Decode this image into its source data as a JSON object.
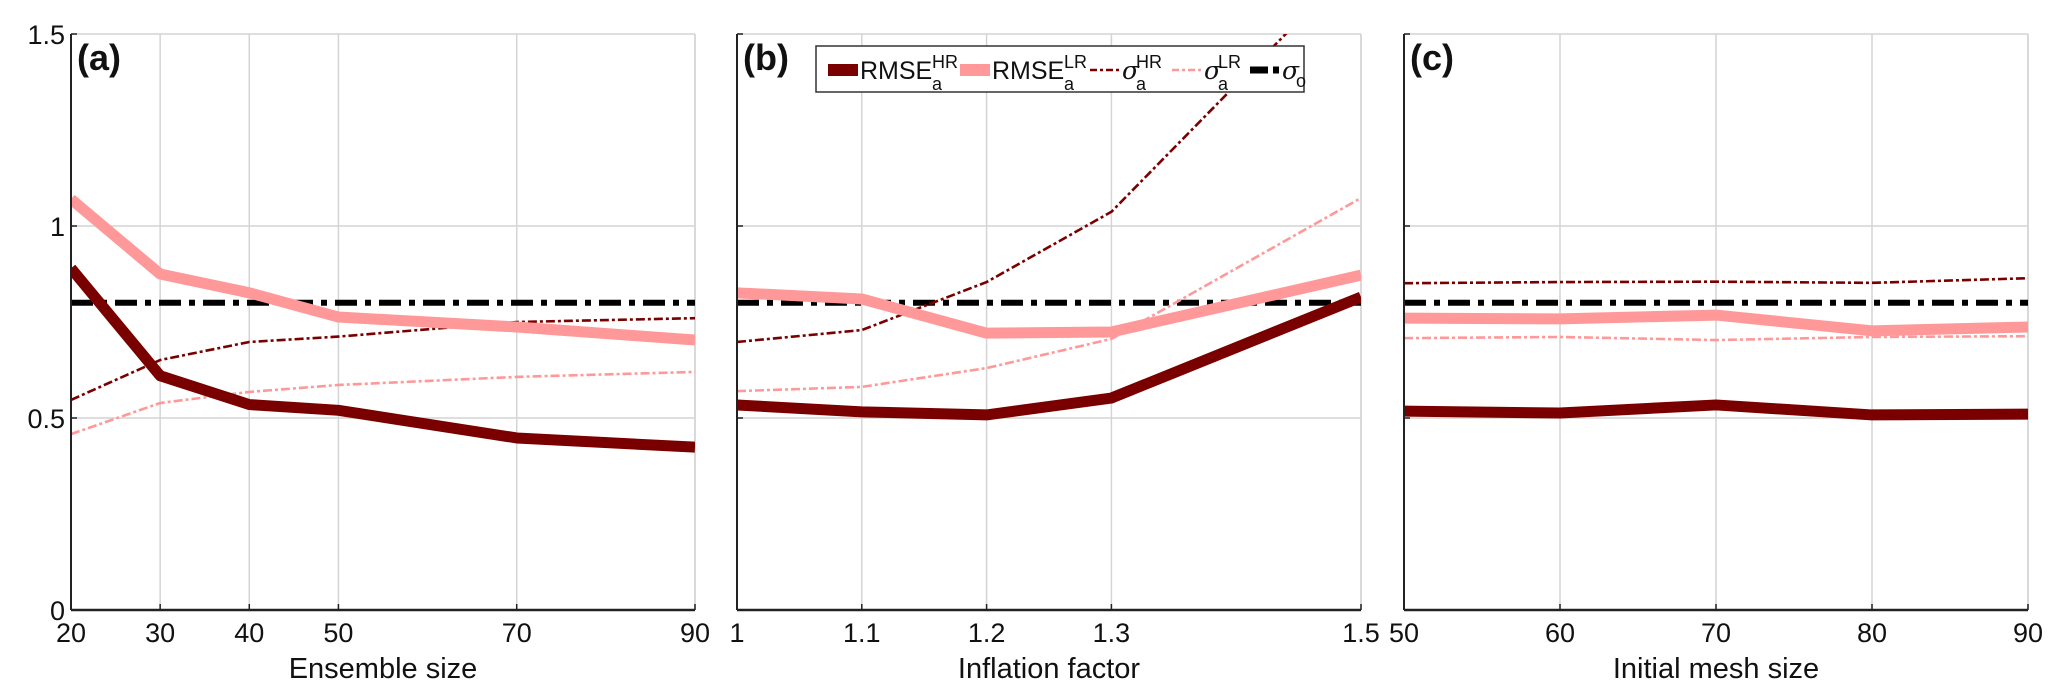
{
  "chart_data": [
    {
      "type": "line",
      "panel_label": "(a)",
      "title": "",
      "xlabel": "Ensemble size",
      "ylabel": "",
      "x": [
        20,
        30,
        40,
        50,
        70,
        90
      ],
      "xticks": [
        "20",
        "30",
        "40",
        "50",
        "70",
        "90"
      ],
      "xlim": [
        20,
        90
      ],
      "ylim": [
        0,
        1.5
      ],
      "yticks": [
        "0",
        "0.5",
        "1",
        "1.5"
      ],
      "grid": true,
      "series": [
        {
          "name": "RMSE_a^HR",
          "key": "rmse_hr",
          "values": [
            0.89,
            0.61,
            0.535,
            0.52,
            0.448,
            0.424
          ]
        },
        {
          "name": "RMSE_a^LR",
          "key": "rmse_lr",
          "values": [
            1.07,
            0.875,
            0.826,
            0.763,
            0.737,
            0.703
          ]
        },
        {
          "name": "sigma_a^HR",
          "key": "sigma_hr",
          "values": [
            0.547,
            0.651,
            0.698,
            0.712,
            0.75,
            0.76
          ]
        },
        {
          "name": "sigma_a^LR",
          "key": "sigma_lr",
          "values": [
            0.458,
            0.539,
            0.568,
            0.586,
            0.607,
            0.62
          ]
        },
        {
          "name": "sigma_o",
          "key": "sigma_o",
          "values": [
            0.8,
            0.8,
            0.8,
            0.8,
            0.8,
            0.8
          ]
        }
      ]
    },
    {
      "type": "line",
      "panel_label": "(b)",
      "title": "",
      "xlabel": "Inflation factor",
      "ylabel": "",
      "x": [
        1.0,
        1.1,
        1.2,
        1.3,
        1.5
      ],
      "xticks": [
        "1",
        "1.1",
        "1.2",
        "1.3",
        "1.5"
      ],
      "xlim": [
        1.0,
        1.5
      ],
      "ylim": [
        0,
        1.5
      ],
      "yticks": [],
      "grid": true,
      "series": [
        {
          "name": "RMSE_a^HR",
          "key": "rmse_hr",
          "values": [
            0.534,
            0.516,
            0.508,
            0.552,
            0.815
          ]
        },
        {
          "name": "RMSE_a^LR",
          "key": "rmse_lr",
          "values": [
            0.826,
            0.81,
            0.721,
            0.724,
            0.872
          ]
        },
        {
          "name": "sigma_a^HR",
          "key": "sigma_hr",
          "values": [
            0.698,
            0.729,
            0.854,
            1.037,
            1.7
          ]
        },
        {
          "name": "sigma_a^LR",
          "key": "sigma_lr",
          "values": [
            0.57,
            0.581,
            0.63,
            0.706,
            1.073
          ]
        },
        {
          "name": "sigma_o",
          "key": "sigma_o",
          "values": [
            0.8,
            0.8,
            0.8,
            0.8,
            0.8
          ]
        }
      ]
    },
    {
      "type": "line",
      "panel_label": "(c)",
      "title": "",
      "xlabel": "Initial mesh size",
      "ylabel": "",
      "x": [
        50,
        60,
        70,
        80,
        90
      ],
      "xticks": [
        "50",
        "60",
        "70",
        "80",
        "90"
      ],
      "xlim": [
        50,
        90
      ],
      "ylim": [
        0,
        1.5
      ],
      "yticks": [],
      "grid": true,
      "series": [
        {
          "name": "RMSE_a^HR",
          "key": "rmse_hr",
          "values": [
            0.518,
            0.513,
            0.534,
            0.508,
            0.51
          ]
        },
        {
          "name": "RMSE_a^LR",
          "key": "rmse_lr",
          "values": [
            0.76,
            0.758,
            0.768,
            0.727,
            0.737
          ]
        },
        {
          "name": "sigma_a^HR",
          "key": "sigma_hr",
          "values": [
            0.851,
            0.854,
            0.855,
            0.852,
            0.864
          ]
        },
        {
          "name": "sigma_a^LR",
          "key": "sigma_lr",
          "values": [
            0.708,
            0.711,
            0.703,
            0.711,
            0.713
          ]
        },
        {
          "name": "sigma_o",
          "key": "sigma_o",
          "values": [
            0.8,
            0.8,
            0.8,
            0.8,
            0.8
          ]
        }
      ]
    }
  ],
  "legend": {
    "placement": "top-center of panel (b)",
    "entries": [
      {
        "key": "rmse_hr",
        "base": "RMSE",
        "sup": "HR",
        "sub": "a",
        "style": "thick-solid",
        "color": "#7a0000"
      },
      {
        "key": "rmse_lr",
        "base": "RMSE",
        "sup": "LR",
        "sub": "a",
        "style": "thick-solid",
        "color": "#ff9999"
      },
      {
        "key": "sigma_hr",
        "base": "σ",
        "sup": "HR",
        "sub": "a",
        "style": "thin-dashdot",
        "color": "#7a0000"
      },
      {
        "key": "sigma_lr",
        "base": "σ",
        "sup": "LR",
        "sub": "a",
        "style": "thin-dashdot",
        "color": "#ff9999"
      },
      {
        "key": "sigma_o",
        "base": "σ",
        "sup": "",
        "sub": "o",
        "style": "thick-dashdot",
        "color": "#000000"
      }
    ]
  },
  "colors": {
    "rmse_hr": "#7a0000",
    "rmse_lr": "#ff9999",
    "sigma_hr": "#7a0000",
    "sigma_lr": "#ff9999",
    "sigma_o": "#000000",
    "grid": "#d4d4d4",
    "axis": "#222222"
  }
}
